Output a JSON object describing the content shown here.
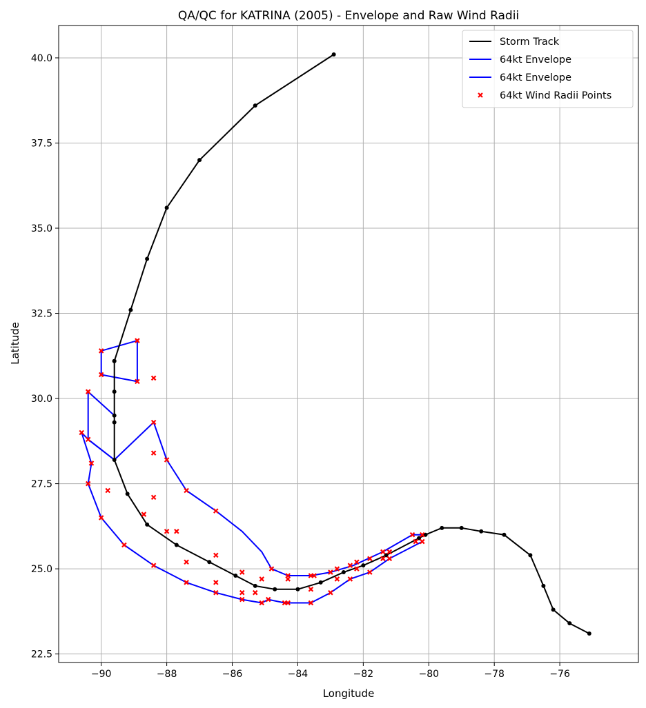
{
  "chart_data": {
    "type": "line",
    "title": "QA/QC for KATRINA (2005) - Envelope and Raw Wind Radii",
    "xlabel": "Longitude",
    "ylabel": "Latitude",
    "xlim": [
      -91.3,
      -73.6
    ],
    "ylim": [
      22.25,
      40.95
    ],
    "xticks": [
      -90,
      -88,
      -86,
      -84,
      -82,
      -80,
      -78,
      -76
    ],
    "xtick_labels": [
      "−90",
      "−88",
      "−86",
      "−84",
      "−82",
      "−80",
      "−78",
      "−76"
    ],
    "yticks": [
      22.5,
      25.0,
      27.5,
      30.0,
      32.5,
      35.0,
      37.5,
      40.0
    ],
    "ytick_labels": [
      "22.5",
      "25.0",
      "27.5",
      "30.0",
      "32.5",
      "35.0",
      "37.5",
      "40.0"
    ],
    "grid": true,
    "legend_position": "top-right",
    "colors": {
      "track": "#000000",
      "envelope": "#0000ff",
      "points": "#ff0000",
      "grid": "#b0b0b0"
    },
    "series": [
      {
        "name": "Storm Track",
        "kind": "line-markers",
        "color": "#000000",
        "x": [
          -75.1,
          -75.7,
          -76.2,
          -76.5,
          -76.9,
          -77.7,
          -78.4,
          -79.0,
          -79.6,
          -80.1,
          -80.3,
          -81.3,
          -82.0,
          -82.6,
          -83.3,
          -84.0,
          -84.7,
          -85.3,
          -85.9,
          -86.7,
          -87.7,
          -88.6,
          -89.2,
          -89.6,
          -89.6,
          -89.6,
          -89.6,
          -89.6,
          -89.6,
          -89.1,
          -88.6,
          -88.0,
          -87.0,
          -85.3,
          -82.9
        ],
        "y": [
          23.1,
          23.4,
          23.8,
          24.5,
          25.4,
          26.0,
          26.1,
          26.2,
          26.2,
          26.0,
          25.9,
          25.4,
          25.1,
          24.9,
          24.6,
          24.4,
          24.4,
          24.5,
          24.8,
          25.2,
          25.7,
          26.3,
          27.2,
          28.2,
          29.3,
          29.5,
          30.2,
          31.1,
          31.1,
          32.6,
          34.1,
          35.6,
          37.0,
          38.6,
          40.1
        ]
      },
      {
        "name": "64kt Envelope",
        "kind": "line",
        "color": "#0000ff",
        "x": [
          -80.2,
          -80.5,
          -81.4,
          -82.3,
          -83.0,
          -83.6,
          -84.3,
          -84.8,
          -85.1,
          -85.7,
          -86.5,
          -87.4,
          -88.0,
          -88.4,
          -89.6,
          -90.4,
          -90.4,
          -89.6
        ],
        "y": [
          26.0,
          26.0,
          25.5,
          25.1,
          24.9,
          24.8,
          24.8,
          25.0,
          25.5,
          26.1,
          26.7,
          27.3,
          28.2,
          29.3,
          28.2,
          28.8,
          30.2,
          29.5
        ]
      },
      {
        "name": "64kt Envelope",
        "kind": "line",
        "color": "#0000ff",
        "x": [
          -80.2,
          -81.2,
          -81.8,
          -82.4,
          -83.0,
          -83.6,
          -84.4,
          -84.9,
          -85.1,
          -85.7,
          -86.5,
          -87.4,
          -88.4,
          -89.3,
          -90.0,
          -90.4,
          -90.3,
          -90.6,
          -90.4,
          -89.6
        ],
        "y": [
          25.8,
          25.3,
          24.9,
          24.7,
          24.3,
          24.0,
          24.0,
          24.1,
          24.0,
          24.1,
          24.3,
          24.6,
          25.1,
          25.7,
          26.5,
          27.5,
          28.1,
          29.0,
          28.8,
          28.2
        ]
      },
      {
        "name": "",
        "kind": "line",
        "color": "#0000ff",
        "x": [
          -90.0,
          -90.0,
          -88.9,
          -88.9,
          -90.0
        ],
        "y": [
          31.4,
          30.7,
          30.5,
          31.7,
          31.4
        ]
      },
      {
        "name": "64kt Wind Radii Points",
        "kind": "scatter",
        "color": "#ff0000",
        "x": [
          -80.2,
          -80.2,
          -80.4,
          -80.5,
          -81.2,
          -81.2,
          -81.4,
          -81.4,
          -81.8,
          -81.8,
          -82.2,
          -82.2,
          -82.4,
          -82.4,
          -82.8,
          -82.8,
          -83.0,
          -83.0,
          -83.5,
          -83.6,
          -83.6,
          -83.6,
          -84.3,
          -84.3,
          -84.3,
          -84.4,
          -84.8,
          -84.9,
          -85.1,
          -85.1,
          -85.3,
          -85.7,
          -85.7,
          -85.7,
          -86.5,
          -86.5,
          -86.5,
          -86.5,
          -87.4,
          -87.4,
          -87.4,
          -87.7,
          -88.0,
          -88.0,
          -88.4,
          -88.4,
          -88.4,
          -88.4,
          -88.4,
          -88.7,
          -88.9,
          -88.9,
          -89.3,
          -89.8,
          -90.0,
          -90.0,
          -90.0,
          -90.3,
          -90.4,
          -90.4,
          -90.4,
          -90.6
        ],
        "y": [
          26.0,
          25.8,
          25.8,
          26.0,
          25.3,
          25.5,
          25.3,
          25.5,
          24.9,
          25.3,
          25.0,
          25.2,
          24.7,
          25.1,
          24.7,
          25.0,
          24.3,
          24.9,
          24.8,
          24.8,
          24.4,
          24.0,
          24.7,
          24.8,
          24.0,
          24.0,
          25.0,
          24.1,
          24.7,
          24.0,
          24.3,
          24.9,
          24.3,
          24.1,
          25.4,
          24.6,
          24.3,
          26.7,
          25.2,
          24.6,
          27.3,
          26.1,
          26.1,
          28.2,
          29.3,
          28.4,
          27.1,
          25.1,
          30.6,
          26.6,
          31.7,
          30.5,
          25.7,
          27.3,
          31.4,
          30.7,
          26.5,
          28.1,
          30.2,
          28.8,
          27.5,
          29.0
        ]
      }
    ],
    "legend": [
      {
        "label": "Storm Track",
        "kind": "line",
        "color": "#000000"
      },
      {
        "label": "64kt Envelope",
        "kind": "line",
        "color": "#0000ff"
      },
      {
        "label": "64kt Envelope",
        "kind": "line",
        "color": "#0000ff"
      },
      {
        "label": "64kt Wind Radii Points",
        "kind": "marker-x",
        "color": "#ff0000"
      }
    ]
  }
}
